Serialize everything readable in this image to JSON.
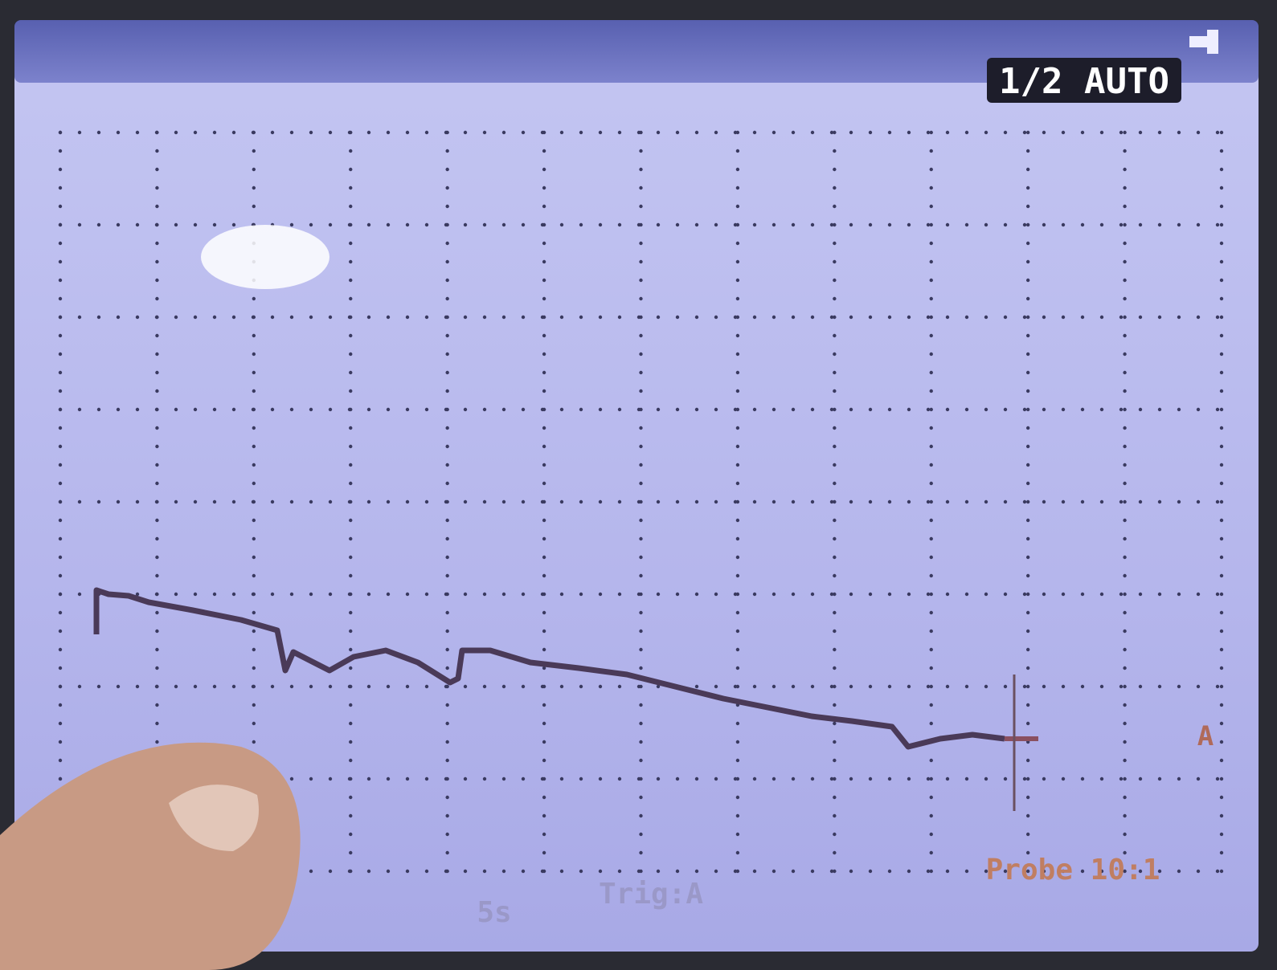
{
  "status": {
    "badge": "1/2 AUTO"
  },
  "trace": {
    "channel_marker": "A"
  },
  "footer": {
    "timebase": "5s",
    "trigger": "Trig:A",
    "probe": "Probe 10:1"
  }
}
